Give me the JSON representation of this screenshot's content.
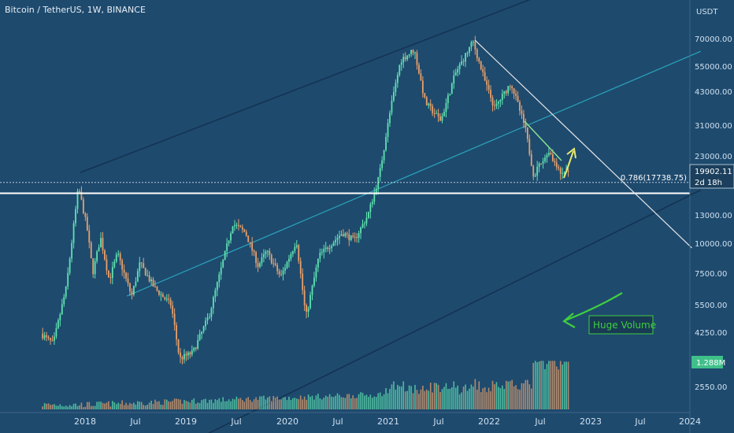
{
  "header": {
    "title": "Bitcoin / TetherUS, 1W, BINANCE",
    "currency": "USDT"
  },
  "colors": {
    "background": "#1e4a6e",
    "up": "#5fe3b0",
    "down": "#e8a06a",
    "channel": "#143352",
    "midline": "#2aa3b8",
    "trendline": "#e6e6e6",
    "support": "#ffffff",
    "arrow_yellow": "#e8e870",
    "arrow_green": "#3fcf3f"
  },
  "price_badge": {
    "price": "19902.11",
    "countdown": "2d 18h"
  },
  "volume_badge": "1.288M",
  "fib_label": "0.786(17738.75)",
  "annotation": "Huge Volume",
  "chart_data": {
    "type": "candlestick",
    "title": "Bitcoin / TetherUS, 1W, BINANCE",
    "ylabel": "USDT",
    "y_scale": "log",
    "ylim": [
      2000,
      95000
    ],
    "y_ticks": [
      "70000.00",
      "55000.00",
      "43000.00",
      "31000.00",
      "23000.00",
      "13000.00",
      "10000.00",
      "7500.00",
      "5500.00",
      "4250.00",
      "2550.00"
    ],
    "x_ticks": [
      "2018",
      "Jul",
      "2019",
      "Jul",
      "2020",
      "Jul",
      "2021",
      "Jul",
      "2022",
      "Jul",
      "2023",
      "Jul",
      "2024"
    ],
    "price_path": [
      [
        "2017-08-01",
        4200
      ],
      [
        "2017-09-15",
        3800
      ],
      [
        "2017-11-01",
        6500
      ],
      [
        "2017-12-15",
        17000
      ],
      [
        "2018-01-15",
        11500
      ],
      [
        "2018-02-05",
        7500
      ],
      [
        "2018-03-05",
        10500
      ],
      [
        "2018-04-05",
        7000
      ],
      [
        "2018-05-05",
        9000
      ],
      [
        "2018-06-25",
        6000
      ],
      [
        "2018-07-25",
        8200
      ],
      [
        "2018-09-15",
        6500
      ],
      [
        "2018-11-15",
        5500
      ],
      [
        "2018-12-15",
        3300
      ],
      [
        "2019-02-01",
        3500
      ],
      [
        "2019-04-01",
        5000
      ],
      [
        "2019-06-25",
        12000
      ],
      [
        "2019-08-10",
        11000
      ],
      [
        "2019-09-25",
        8000
      ],
      [
        "2019-10-25",
        9200
      ],
      [
        "2019-12-15",
        7200
      ],
      [
        "2020-02-10",
        10200
      ],
      [
        "2020-03-15",
        4900
      ],
      [
        "2020-05-01",
        8800
      ],
      [
        "2020-07-25",
        11000
      ],
      [
        "2020-09-05",
        10200
      ],
      [
        "2020-10-25",
        13000
      ],
      [
        "2020-12-05",
        19000
      ],
      [
        "2021-01-15",
        36000
      ],
      [
        "2021-02-20",
        57000
      ],
      [
        "2021-04-10",
        63000
      ],
      [
        "2021-05-20",
        38000
      ],
      [
        "2021-07-15",
        32000
      ],
      [
        "2021-09-05",
        50000
      ],
      [
        "2021-11-08",
        68000
      ],
      [
        "2021-12-20",
        47000
      ],
      [
        "2022-01-25",
        36000
      ],
      [
        "2022-03-25",
        46000
      ],
      [
        "2022-05-15",
        30000
      ],
      [
        "2022-06-15",
        19000
      ],
      [
        "2022-08-10",
        24000
      ],
      [
        "2022-09-20",
        19000
      ],
      [
        "2022-10-15",
        19900
      ]
    ],
    "volume_end_value": "1.288M",
    "lines": {
      "fib_level": {
        "label": "0.786(17738.75)",
        "value": 17738.75
      },
      "support": 16000,
      "downtrend": [
        [
          "2021-11-08",
          69000
        ],
        [
          "2023-12-31",
          9500
        ]
      ],
      "channel_upper": [
        [
          "2017-12-15",
          19500
        ],
        [
          "2024-02-01",
          190000
        ]
      ],
      "channel_mid": [
        [
          "2018-06-01",
          6000
        ],
        [
          "2024-02-01",
          62000
        ]
      ],
      "channel_lower": [
        [
          "2018-12-01",
          1400
        ],
        [
          "2024-02-01",
          16500
        ]
      ]
    }
  }
}
